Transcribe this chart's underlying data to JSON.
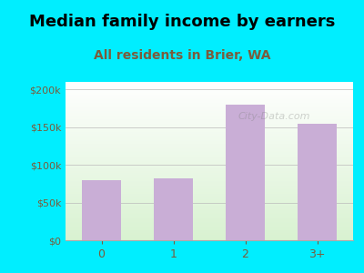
{
  "title": "Median family income by earners",
  "subtitle": "All residents in Brier, WA",
  "categories": [
    "0",
    "1",
    "2",
    "3+"
  ],
  "values": [
    80000,
    82000,
    180000,
    155000
  ],
  "bar_color": "#c9aed6",
  "title_fontsize": 13,
  "subtitle_fontsize": 10,
  "subtitle_color": "#7a5c3c",
  "tick_color": "#7a5c3c",
  "background_outer": "#00eeff",
  "ylim": [
    0,
    210000
  ],
  "yticks": [
    0,
    50000,
    100000,
    150000,
    200000
  ],
  "ytick_labels": [
    "$0",
    "$50k",
    "$100k",
    "$150k",
    "$200k"
  ],
  "watermark": "City-Data.com"
}
